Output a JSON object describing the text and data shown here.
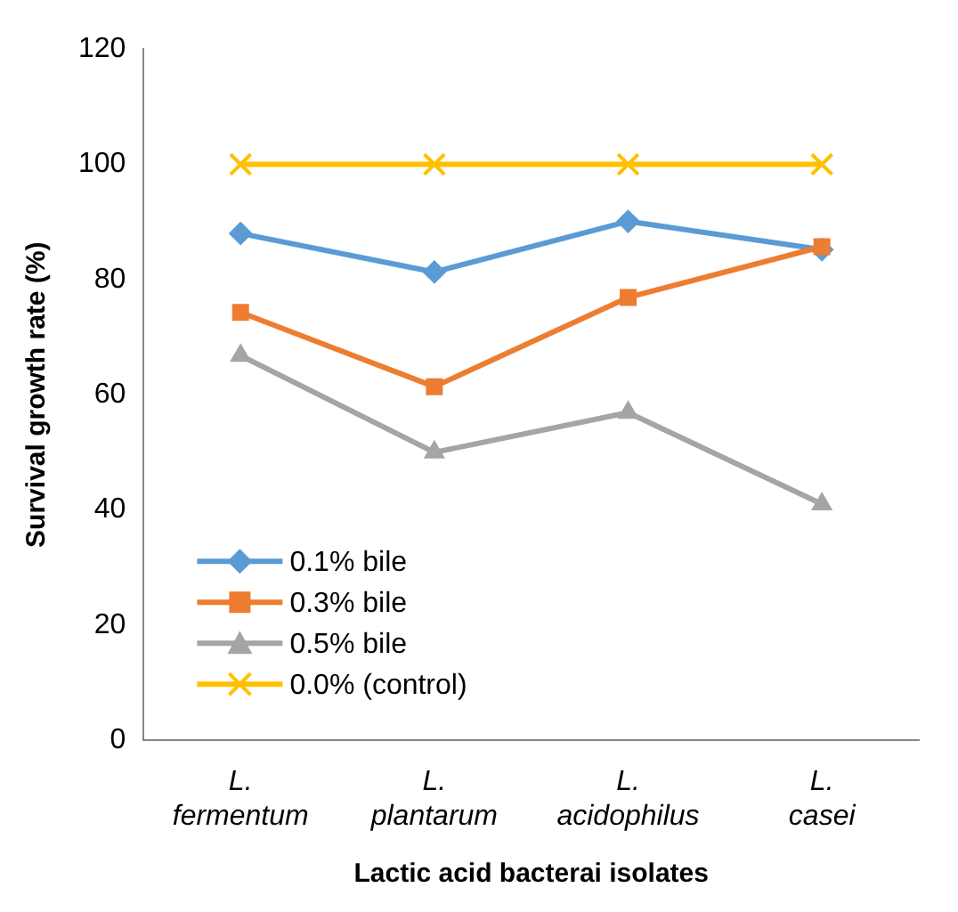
{
  "chart_data": {
    "type": "line",
    "xlabel": "Lactic acid bacterai isolates",
    "ylabel": "Survival growth rate (%)",
    "categories": [
      "L. fermentum",
      "L. plantarum",
      "L. acidophilus",
      "L. casei"
    ],
    "series": [
      {
        "name": "0.1% bile",
        "color": "#5b9bd5",
        "marker": "diamond",
        "values": [
          88,
          81.3,
          90.1,
          85.2
        ]
      },
      {
        "name": "0.3% bile",
        "color": "#ed7d31",
        "marker": "square",
        "values": [
          74.3,
          61.4,
          76.9,
          85.7
        ]
      },
      {
        "name": "0.5% bile",
        "color": "#a5a5a5",
        "marker": "triangle",
        "values": [
          66.8,
          50,
          56.9,
          41
        ]
      },
      {
        "name": "0.0% (control)",
        "color": "#ffc000",
        "marker": "cross",
        "values": [
          100,
          100,
          100,
          100
        ]
      }
    ],
    "ylim": [
      0,
      120
    ],
    "yticks": [
      0,
      20,
      40,
      60,
      80,
      100,
      120
    ],
    "grid": false,
    "legend": "bottom left",
    "line_style": "solid"
  }
}
